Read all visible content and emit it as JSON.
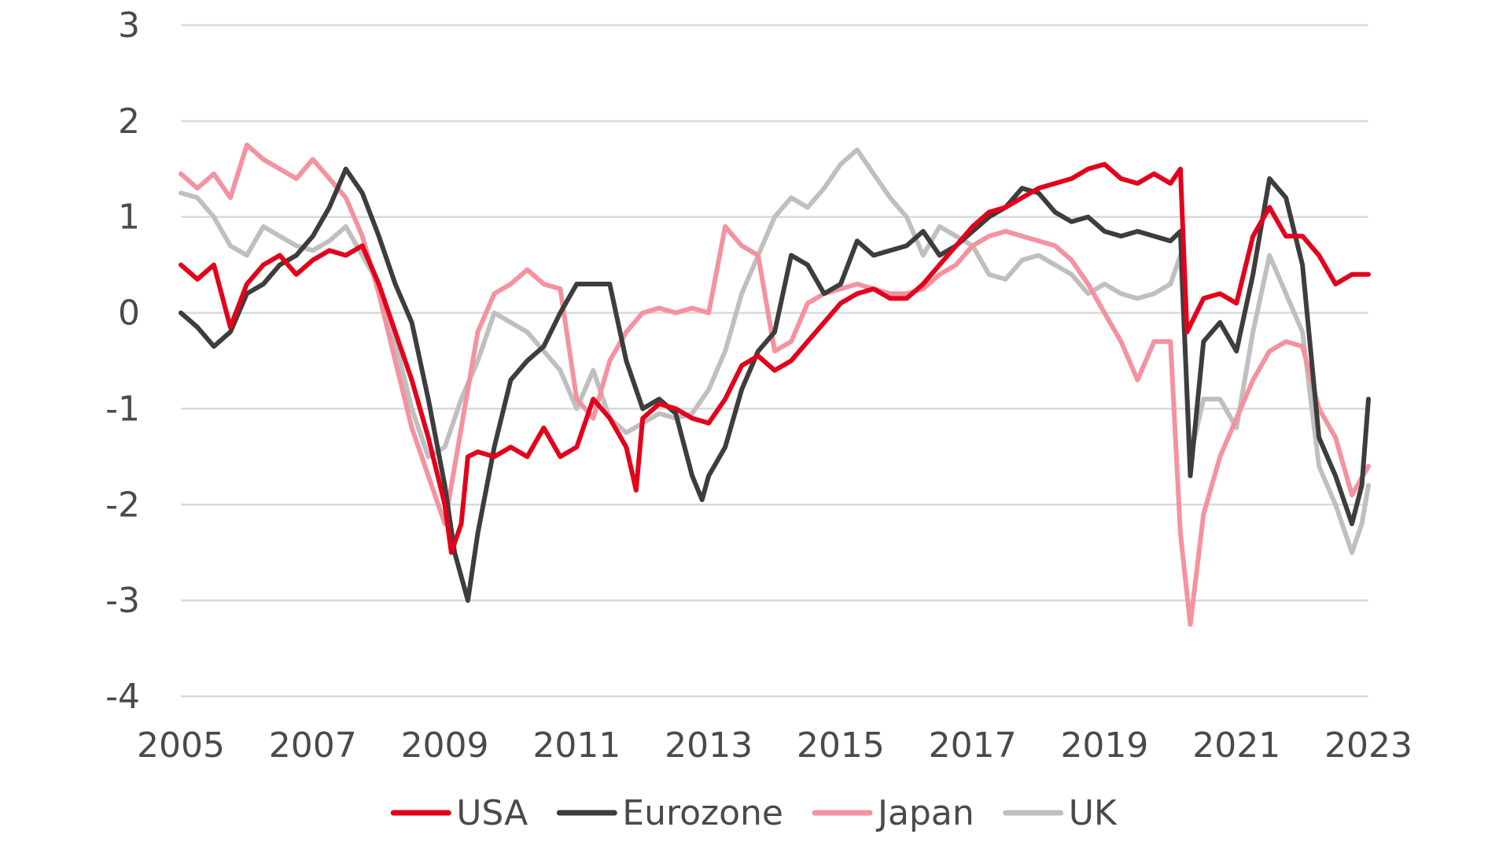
{
  "chart_data": {
    "type": "line",
    "title": "",
    "xlabel": "",
    "ylabel": "",
    "ylim": [
      -4,
      3
    ],
    "xlim": [
      2005,
      2023
    ],
    "y_ticks": [
      "3",
      "2",
      "1",
      "0",
      "-1",
      "-2",
      "-3",
      "-4"
    ],
    "y_tick_values": [
      3,
      2,
      1,
      0,
      -1,
      -2,
      -3,
      -4
    ],
    "x_ticks": [
      "2005",
      "2007",
      "2009",
      "2011",
      "2013",
      "2015",
      "2017",
      "2019",
      "2021",
      "2023"
    ],
    "x_tick_values": [
      2005,
      2007,
      2009,
      2011,
      2013,
      2015,
      2017,
      2019,
      2021,
      2023
    ],
    "grid": true,
    "legend_position": "bottom",
    "series": [
      {
        "name": "USA",
        "color": "#e3001b",
        "points": [
          [
            2005.0,
            0.5
          ],
          [
            2005.25,
            0.35
          ],
          [
            2005.5,
            0.5
          ],
          [
            2005.75,
            -0.15
          ],
          [
            2006.0,
            0.3
          ],
          [
            2006.25,
            0.5
          ],
          [
            2006.5,
            0.6
          ],
          [
            2006.75,
            0.4
          ],
          [
            2007.0,
            0.55
          ],
          [
            2007.25,
            0.65
          ],
          [
            2007.5,
            0.6
          ],
          [
            2007.75,
            0.7
          ],
          [
            2008.0,
            0.3
          ],
          [
            2008.25,
            -0.2
          ],
          [
            2008.5,
            -0.7
          ],
          [
            2008.75,
            -1.3
          ],
          [
            2009.0,
            -2.0
          ],
          [
            2009.1,
            -2.5
          ],
          [
            2009.25,
            -2.2
          ],
          [
            2009.35,
            -1.5
          ],
          [
            2009.5,
            -1.45
          ],
          [
            2009.75,
            -1.5
          ],
          [
            2010.0,
            -1.4
          ],
          [
            2010.25,
            -1.5
          ],
          [
            2010.5,
            -1.2
          ],
          [
            2010.75,
            -1.5
          ],
          [
            2011.0,
            -1.4
          ],
          [
            2011.25,
            -0.9
          ],
          [
            2011.5,
            -1.1
          ],
          [
            2011.75,
            -1.4
          ],
          [
            2011.9,
            -1.85
          ],
          [
            2012.0,
            -1.1
          ],
          [
            2012.25,
            -0.95
          ],
          [
            2012.5,
            -1.0
          ],
          [
            2012.75,
            -1.1
          ],
          [
            2013.0,
            -1.15
          ],
          [
            2013.25,
            -0.9
          ],
          [
            2013.5,
            -0.55
          ],
          [
            2013.75,
            -0.45
          ],
          [
            2014.0,
            -0.6
          ],
          [
            2014.25,
            -0.5
          ],
          [
            2014.5,
            -0.3
          ],
          [
            2014.75,
            -0.1
          ],
          [
            2015.0,
            0.1
          ],
          [
            2015.25,
            0.2
          ],
          [
            2015.5,
            0.25
          ],
          [
            2015.75,
            0.15
          ],
          [
            2016.0,
            0.15
          ],
          [
            2016.25,
            0.3
          ],
          [
            2016.5,
            0.5
          ],
          [
            2016.75,
            0.7
          ],
          [
            2017.0,
            0.9
          ],
          [
            2017.25,
            1.05
          ],
          [
            2017.5,
            1.1
          ],
          [
            2017.75,
            1.2
          ],
          [
            2018.0,
            1.3
          ],
          [
            2018.25,
            1.35
          ],
          [
            2018.5,
            1.4
          ],
          [
            2018.75,
            1.5
          ],
          [
            2019.0,
            1.55
          ],
          [
            2019.25,
            1.4
          ],
          [
            2019.5,
            1.35
          ],
          [
            2019.75,
            1.45
          ],
          [
            2020.0,
            1.35
          ],
          [
            2020.15,
            1.5
          ],
          [
            2020.25,
            -0.2
          ],
          [
            2020.5,
            0.15
          ],
          [
            2020.75,
            0.2
          ],
          [
            2021.0,
            0.1
          ],
          [
            2021.25,
            0.8
          ],
          [
            2021.5,
            1.1
          ],
          [
            2021.75,
            0.8
          ],
          [
            2022.0,
            0.8
          ],
          [
            2022.25,
            0.6
          ],
          [
            2022.5,
            0.3
          ],
          [
            2022.75,
            0.4
          ],
          [
            2023.0,
            0.4
          ]
        ]
      },
      {
        "name": "Eurozone",
        "color": "#3d3d3d",
        "points": [
          [
            2005.0,
            0.0
          ],
          [
            2005.25,
            -0.15
          ],
          [
            2005.5,
            -0.35
          ],
          [
            2005.75,
            -0.2
          ],
          [
            2006.0,
            0.2
          ],
          [
            2006.25,
            0.3
          ],
          [
            2006.5,
            0.5
          ],
          [
            2006.75,
            0.6
          ],
          [
            2007.0,
            0.8
          ],
          [
            2007.25,
            1.1
          ],
          [
            2007.5,
            1.5
          ],
          [
            2007.75,
            1.25
          ],
          [
            2008.0,
            0.8
          ],
          [
            2008.25,
            0.3
          ],
          [
            2008.5,
            -0.1
          ],
          [
            2008.75,
            -0.9
          ],
          [
            2009.0,
            -1.8
          ],
          [
            2009.15,
            -2.5
          ],
          [
            2009.35,
            -3.0
          ],
          [
            2009.5,
            -2.3
          ],
          [
            2009.75,
            -1.4
          ],
          [
            2010.0,
            -0.7
          ],
          [
            2010.25,
            -0.5
          ],
          [
            2010.5,
            -0.35
          ],
          [
            2010.75,
            0.0
          ],
          [
            2011.0,
            0.3
          ],
          [
            2011.25,
            0.3
          ],
          [
            2011.5,
            0.3
          ],
          [
            2011.75,
            -0.5
          ],
          [
            2012.0,
            -1.0
          ],
          [
            2012.25,
            -0.9
          ],
          [
            2012.5,
            -1.05
          ],
          [
            2012.75,
            -1.7
          ],
          [
            2012.9,
            -1.95
          ],
          [
            2013.0,
            -1.7
          ],
          [
            2013.25,
            -1.4
          ],
          [
            2013.5,
            -0.8
          ],
          [
            2013.75,
            -0.4
          ],
          [
            2014.0,
            -0.2
          ],
          [
            2014.25,
            0.6
          ],
          [
            2014.5,
            0.5
          ],
          [
            2014.75,
            0.2
          ],
          [
            2015.0,
            0.3
          ],
          [
            2015.25,
            0.75
          ],
          [
            2015.5,
            0.6
          ],
          [
            2015.75,
            0.65
          ],
          [
            2016.0,
            0.7
          ],
          [
            2016.25,
            0.85
          ],
          [
            2016.5,
            0.6
          ],
          [
            2016.75,
            0.7
          ],
          [
            2017.0,
            0.85
          ],
          [
            2017.25,
            1.0
          ],
          [
            2017.5,
            1.1
          ],
          [
            2017.75,
            1.3
          ],
          [
            2018.0,
            1.25
          ],
          [
            2018.25,
            1.05
          ],
          [
            2018.5,
            0.95
          ],
          [
            2018.75,
            1.0
          ],
          [
            2019.0,
            0.85
          ],
          [
            2019.25,
            0.8
          ],
          [
            2019.5,
            0.85
          ],
          [
            2019.75,
            0.8
          ],
          [
            2020.0,
            0.75
          ],
          [
            2020.15,
            0.85
          ],
          [
            2020.3,
            -1.7
          ],
          [
            2020.5,
            -0.3
          ],
          [
            2020.75,
            -0.1
          ],
          [
            2021.0,
            -0.4
          ],
          [
            2021.25,
            0.4
          ],
          [
            2021.5,
            1.4
          ],
          [
            2021.75,
            1.2
          ],
          [
            2022.0,
            0.5
          ],
          [
            2022.25,
            -1.3
          ],
          [
            2022.5,
            -1.7
          ],
          [
            2022.75,
            -2.2
          ],
          [
            2022.9,
            -1.8
          ],
          [
            2023.0,
            -0.9
          ]
        ]
      },
      {
        "name": "Japan",
        "color": "#f4929f",
        "points": [
          [
            2005.0,
            1.45
          ],
          [
            2005.25,
            1.3
          ],
          [
            2005.5,
            1.45
          ],
          [
            2005.75,
            1.2
          ],
          [
            2006.0,
            1.75
          ],
          [
            2006.25,
            1.6
          ],
          [
            2006.5,
            1.5
          ],
          [
            2006.75,
            1.4
          ],
          [
            2007.0,
            1.6
          ],
          [
            2007.25,
            1.4
          ],
          [
            2007.5,
            1.2
          ],
          [
            2007.75,
            0.8
          ],
          [
            2008.0,
            0.2
          ],
          [
            2008.25,
            -0.5
          ],
          [
            2008.5,
            -1.2
          ],
          [
            2008.75,
            -1.7
          ],
          [
            2009.0,
            -2.2
          ],
          [
            2009.25,
            -1.2
          ],
          [
            2009.5,
            -0.2
          ],
          [
            2009.75,
            0.2
          ],
          [
            2010.0,
            0.3
          ],
          [
            2010.25,
            0.45
          ],
          [
            2010.5,
            0.3
          ],
          [
            2010.75,
            0.25
          ],
          [
            2011.0,
            -0.9
          ],
          [
            2011.25,
            -1.1
          ],
          [
            2011.5,
            -0.5
          ],
          [
            2011.75,
            -0.2
          ],
          [
            2012.0,
            0.0
          ],
          [
            2012.25,
            0.05
          ],
          [
            2012.5,
            0.0
          ],
          [
            2012.75,
            0.05
          ],
          [
            2013.0,
            0.0
          ],
          [
            2013.25,
            0.9
          ],
          [
            2013.5,
            0.7
          ],
          [
            2013.75,
            0.6
          ],
          [
            2014.0,
            -0.4
          ],
          [
            2014.25,
            -0.3
          ],
          [
            2014.5,
            0.1
          ],
          [
            2014.75,
            0.2
          ],
          [
            2015.0,
            0.25
          ],
          [
            2015.25,
            0.3
          ],
          [
            2015.5,
            0.25
          ],
          [
            2015.75,
            0.2
          ],
          [
            2016.0,
            0.2
          ],
          [
            2016.25,
            0.25
          ],
          [
            2016.5,
            0.4
          ],
          [
            2016.75,
            0.5
          ],
          [
            2017.0,
            0.7
          ],
          [
            2017.25,
            0.8
          ],
          [
            2017.5,
            0.85
          ],
          [
            2017.75,
            0.8
          ],
          [
            2018.0,
            0.75
          ],
          [
            2018.25,
            0.7
          ],
          [
            2018.5,
            0.55
          ],
          [
            2018.75,
            0.3
          ],
          [
            2019.0,
            0.0
          ],
          [
            2019.25,
            -0.3
          ],
          [
            2019.5,
            -0.7
          ],
          [
            2019.75,
            -0.3
          ],
          [
            2020.0,
            -0.3
          ],
          [
            2020.15,
            -2.3
          ],
          [
            2020.3,
            -3.25
          ],
          [
            2020.5,
            -2.1
          ],
          [
            2020.75,
            -1.5
          ],
          [
            2021.0,
            -1.1
          ],
          [
            2021.25,
            -0.7
          ],
          [
            2021.5,
            -0.4
          ],
          [
            2021.75,
            -0.3
          ],
          [
            2022.0,
            -0.35
          ],
          [
            2022.25,
            -1.0
          ],
          [
            2022.5,
            -1.3
          ],
          [
            2022.75,
            -1.9
          ],
          [
            2023.0,
            -1.6
          ]
        ]
      },
      {
        "name": "UK",
        "color": "#bfbfbf",
        "points": [
          [
            2005.0,
            1.25
          ],
          [
            2005.25,
            1.2
          ],
          [
            2005.5,
            1.0
          ],
          [
            2005.75,
            0.7
          ],
          [
            2006.0,
            0.6
          ],
          [
            2006.25,
            0.9
          ],
          [
            2006.5,
            0.8
          ],
          [
            2006.75,
            0.7
          ],
          [
            2007.0,
            0.65
          ],
          [
            2007.25,
            0.75
          ],
          [
            2007.5,
            0.9
          ],
          [
            2007.75,
            0.6
          ],
          [
            2008.0,
            0.3
          ],
          [
            2008.25,
            -0.3
          ],
          [
            2008.5,
            -1.0
          ],
          [
            2008.75,
            -1.5
          ],
          [
            2009.0,
            -1.4
          ],
          [
            2009.25,
            -0.9
          ],
          [
            2009.5,
            -0.5
          ],
          [
            2009.75,
            0.0
          ],
          [
            2010.0,
            -0.1
          ],
          [
            2010.25,
            -0.2
          ],
          [
            2010.5,
            -0.4
          ],
          [
            2010.75,
            -0.6
          ],
          [
            2011.0,
            -1.0
          ],
          [
            2011.25,
            -0.6
          ],
          [
            2011.5,
            -1.1
          ],
          [
            2011.75,
            -1.25
          ],
          [
            2012.0,
            -1.15
          ],
          [
            2012.25,
            -1.05
          ],
          [
            2012.5,
            -1.1
          ],
          [
            2012.75,
            -1.05
          ],
          [
            2013.0,
            -0.8
          ],
          [
            2013.25,
            -0.4
          ],
          [
            2013.5,
            0.2
          ],
          [
            2013.75,
            0.6
          ],
          [
            2014.0,
            1.0
          ],
          [
            2014.25,
            1.2
          ],
          [
            2014.5,
            1.1
          ],
          [
            2014.75,
            1.3
          ],
          [
            2015.0,
            1.55
          ],
          [
            2015.25,
            1.7
          ],
          [
            2015.5,
            1.45
          ],
          [
            2015.75,
            1.2
          ],
          [
            2016.0,
            1.0
          ],
          [
            2016.25,
            0.6
          ],
          [
            2016.5,
            0.9
          ],
          [
            2016.75,
            0.8
          ],
          [
            2017.0,
            0.7
          ],
          [
            2017.25,
            0.4
          ],
          [
            2017.5,
            0.35
          ],
          [
            2017.75,
            0.55
          ],
          [
            2018.0,
            0.6
          ],
          [
            2018.25,
            0.5
          ],
          [
            2018.5,
            0.4
          ],
          [
            2018.75,
            0.2
          ],
          [
            2019.0,
            0.3
          ],
          [
            2019.25,
            0.2
          ],
          [
            2019.5,
            0.15
          ],
          [
            2019.75,
            0.2
          ],
          [
            2020.0,
            0.3
          ],
          [
            2020.15,
            0.6
          ],
          [
            2020.3,
            -1.5
          ],
          [
            2020.5,
            -0.9
          ],
          [
            2020.75,
            -0.9
          ],
          [
            2021.0,
            -1.2
          ],
          [
            2021.25,
            -0.2
          ],
          [
            2021.5,
            0.6
          ],
          [
            2021.75,
            0.2
          ],
          [
            2022.0,
            -0.2
          ],
          [
            2022.25,
            -1.6
          ],
          [
            2022.5,
            -2.0
          ],
          [
            2022.75,
            -2.5
          ],
          [
            2022.9,
            -2.2
          ],
          [
            2023.0,
            -1.8
          ]
        ]
      }
    ]
  }
}
